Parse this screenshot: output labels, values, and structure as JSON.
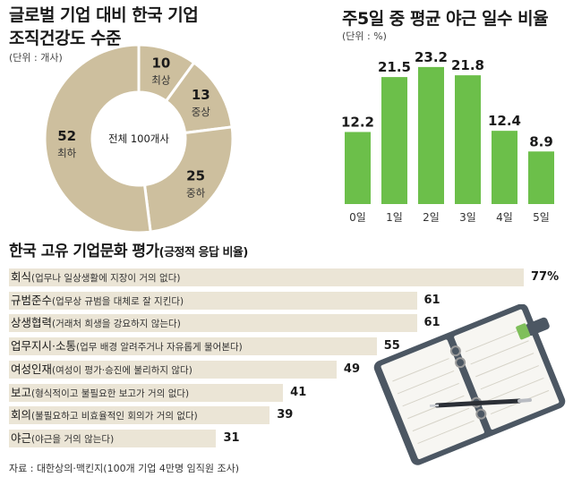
{
  "charts_titles": {
    "donut_title_line1": "글로벌 기업 대비 한국 기업",
    "donut_title_line2": "조직건강도 수준",
    "donut_unit": "(단위 : 개사)",
    "bar_title": "주5일 중 평균 야근 일수 비율",
    "bar_unit": "(단위 : %)",
    "hbar_title": "한국 고유 기업문화 평가",
    "hbar_title_sub": "(긍정적 응답 비율)",
    "source": "자료 : 대한상의·맥킨지(100개 기업 4만명 임직원 조사)"
  },
  "chart_data": [
    {
      "type": "pie",
      "subtype": "donut",
      "center_label": "전체 100개사",
      "slices": [
        {
          "label": "최상",
          "value": 10
        },
        {
          "label": "중상",
          "value": 13
        },
        {
          "label": "중하",
          "value": 25
        },
        {
          "label": "최하",
          "value": 52
        }
      ],
      "colors": [
        "#cdbf9e",
        "#cdbf9e",
        "#cdbf9e",
        "#cdbf9e"
      ]
    },
    {
      "type": "bar",
      "categories": [
        "0일",
        "1일",
        "2일",
        "3일",
        "4일",
        "5일"
      ],
      "values": [
        12.2,
        21.5,
        23.2,
        21.8,
        12.4,
        8.9
      ],
      "ylim": [
        0,
        25
      ],
      "color": "#6cbf4a"
    },
    {
      "type": "bar",
      "orientation": "horizontal",
      "items": [
        {
          "label": "회식",
          "detail": "(업무나 일상생활에 지장이 거의 없다)",
          "value": 77,
          "value_label": "77%"
        },
        {
          "label": "규범준수",
          "detail": "(업무상 규범을 대체로 잘 지킨다)",
          "value": 61,
          "value_label": "61"
        },
        {
          "label": "상생협력",
          "detail": "(거래처 희생을 강요하지 않는다)",
          "value": 61,
          "value_label": "61"
        },
        {
          "label": "업무지시·소통",
          "detail": "(업무 배경 알려주거나 자유롭게 물어본다)",
          "value": 55,
          "value_label": "55"
        },
        {
          "label": "여성인재",
          "detail": "(여성이 평가·승진에 불리하지 않다)",
          "value": 49,
          "value_label": "49"
        },
        {
          "label": "보고",
          "detail": "(형식적이고 불필요한 보고가 거의 없다)",
          "value": 41,
          "value_label": "41"
        },
        {
          "label": "회의",
          "detail": "(불필요하고 비효율적인 회의가 거의 없다)",
          "value": 39,
          "value_label": "39"
        },
        {
          "label": "야근",
          "detail": "(야근을 거의 않는다)",
          "value": 31,
          "value_label": "31"
        }
      ],
      "xlim": [
        0,
        77
      ],
      "color": "#ebe5d6"
    }
  ],
  "colors": {
    "donut": "#cdbf9e",
    "green": "#6cbf4a",
    "hbar": "#ebe5d6",
    "notebook": "#55616e"
  },
  "illustration": {
    "name": "planner-notebook-with-pen"
  }
}
